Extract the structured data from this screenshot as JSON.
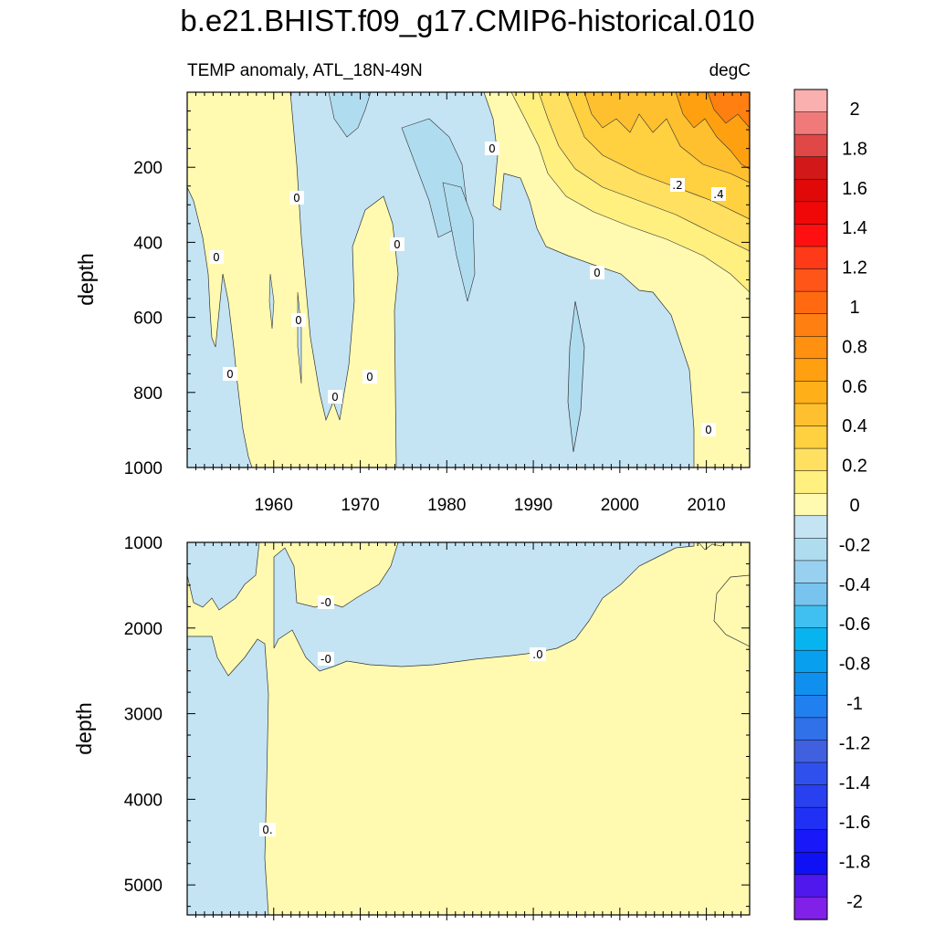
{
  "chart_data": {
    "type": "heatmap",
    "title": "b.e21.BHIST.f09_g17.CMIP6-historical.010",
    "subtitle_left": "TEMP anomaly, ATL_18N-49N",
    "subtitle_right": "degC",
    "xlim": [
      1950,
      2015
    ],
    "x_ticks": [
      "1960",
      "1970",
      "1980",
      "1990",
      "2000",
      "2010"
    ],
    "panels": [
      {
        "name": "upper",
        "ylabel": "depth",
        "ylim": [
          0,
          1000
        ],
        "y_ticks": [
          "200",
          "400",
          "600",
          "800",
          "1000"
        ],
        "contour_labels": [
          "0",
          "0",
          "0",
          "0",
          "0",
          "0",
          "0",
          "0",
          "0",
          "0",
          ".2",
          ".4",
          "0"
        ]
      },
      {
        "name": "lower",
        "ylabel": "depth",
        "ylim": [
          1000,
          5350
        ],
        "y_ticks": [
          "1000",
          "2000",
          "3000",
          "4000",
          "5000"
        ],
        "contour_labels": [
          "-0",
          "-0",
          ".0",
          "0."
        ]
      }
    ],
    "colorbar": {
      "labels": [
        "2",
        "1.8",
        "1.6",
        "1.4",
        "1.2",
        "1",
        "0.8",
        "0.6",
        "0.4",
        "0.2",
        "0",
        "-0.2",
        "-0.4",
        "-0.6",
        "-0.8",
        "-1",
        "-1.2",
        "-1.4",
        "-1.6",
        "-1.8",
        "-2"
      ],
      "colors": [
        "#fbb0b0",
        "#f07a7a",
        "#e04848",
        "#d21818",
        "#e00808",
        "#f00808",
        "#ff1010",
        "#ff3a18",
        "#ff5518",
        "#ff6a10",
        "#ff8010",
        "#ff9010",
        "#ffa010",
        "#ffb018",
        "#ffc030",
        "#ffd040",
        "#ffe060",
        "#fff080",
        "#fffab0",
        "#c4e4f4",
        "#b0dcf0",
        "#98d0f0",
        "#78c4ee",
        "#40c0f0",
        "#08b4f0",
        "#08a0ee",
        "#1090ee",
        "#2080f0",
        "#3070e8",
        "#4060e0",
        "#3050ee",
        "#2840f0",
        "#2030f4",
        "#1818f8",
        "#1010f4",
        "#5018ec",
        "#8020e8"
      ]
    },
    "levels_color": {
      "neg": "#c4e4f4",
      "pos": "#fffab0"
    }
  }
}
